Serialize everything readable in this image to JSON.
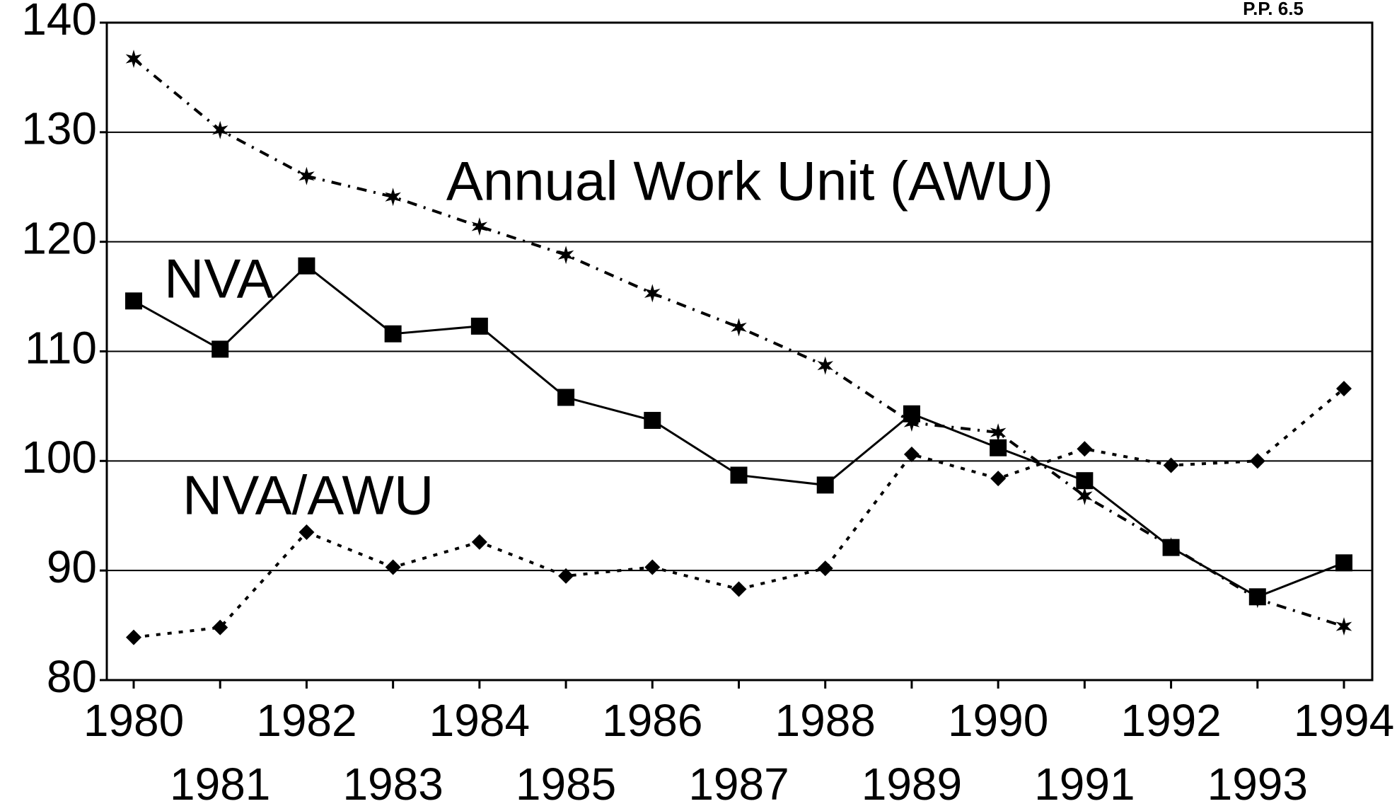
{
  "chart_data": {
    "type": "line",
    "note": "P.P. 6.5",
    "categories": [
      "1980",
      "1981",
      "1982",
      "1983",
      "1984",
      "1985",
      "1986",
      "1987",
      "1988",
      "1989",
      "1990",
      "1991",
      "1992",
      "1993",
      "1994"
    ],
    "ylim": [
      80,
      140
    ],
    "yticks": [
      80,
      90,
      100,
      110,
      120,
      130,
      140
    ],
    "grid": true,
    "series": [
      {
        "name": "Annual Work Unit (AWU)",
        "color": "#000000",
        "marker": "star",
        "line_style": "dash-dot",
        "values": [
          136.7,
          130.2,
          126,
          124.1,
          121.4,
          118.8,
          115.3,
          112.2,
          108.7,
          103.5,
          102.6,
          96.8,
          92.2,
          87.4,
          84.9
        ]
      },
      {
        "name": "NVA",
        "color": "#000000",
        "marker": "square",
        "line_style": "solid",
        "values": [
          114.6,
          110.2,
          117.8,
          111.6,
          112.3,
          105.8,
          103.7,
          98.7,
          97.8,
          104.3,
          101.2,
          98.2,
          92.1,
          87.6,
          90.7
        ]
      },
      {
        "name": "NVA/AWU",
        "color": "#000000",
        "marker": "diamond",
        "line_style": "dotted",
        "values": [
          83.9,
          84.8,
          93.5,
          90.3,
          92.6,
          89.5,
          90.3,
          88.3,
          90.2,
          100.6,
          98.4,
          101.1,
          99.6,
          100,
          106.6
        ]
      }
    ]
  }
}
